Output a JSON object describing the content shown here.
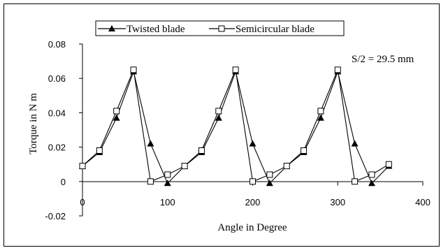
{
  "chart_data": {
    "type": "line",
    "xlabel": "Angle in Degree",
    "ylabel": "Torque in N m",
    "annotation": "S/2 = 29.5 mm",
    "xlim": [
      0,
      400
    ],
    "ylim": [
      -0.02,
      0.08
    ],
    "x_ticks": [
      0,
      100,
      200,
      300,
      400
    ],
    "x_tick_labels": [
      "0",
      "100",
      "200",
      "300",
      "400"
    ],
    "y_ticks": [
      -0.02,
      0,
      0.02,
      0.04,
      0.06,
      0.08
    ],
    "y_tick_labels": [
      "-0.02",
      "0",
      "0.02",
      "0.04",
      "0.06",
      "0.08"
    ],
    "grid": false,
    "legend_position": "top",
    "series": [
      {
        "name": "Twisted blade",
        "marker": "filled-triangle",
        "x": [
          0,
          20,
          40,
          60,
          80,
          100,
          120,
          140,
          160,
          180,
          200,
          220,
          240,
          260,
          280,
          300,
          320,
          340,
          360
        ],
        "y": [
          0.009,
          0.017,
          0.037,
          0.064,
          0.022,
          -0.001,
          0.009,
          0.017,
          0.037,
          0.064,
          0.022,
          -0.001,
          0.009,
          0.017,
          0.037,
          0.064,
          0.022,
          -0.001,
          0.009
        ]
      },
      {
        "name": "Semicircular blade",
        "marker": "open-square",
        "x": [
          0,
          20,
          40,
          60,
          80,
          100,
          120,
          140,
          160,
          180,
          200,
          220,
          240,
          260,
          280,
          300,
          320,
          340,
          360
        ],
        "y": [
          0.009,
          0.018,
          0.041,
          0.065,
          0.0,
          0.004,
          0.009,
          0.018,
          0.041,
          0.065,
          0.0,
          0.004,
          0.009,
          0.018,
          0.041,
          0.065,
          0.0,
          0.004,
          0.01
        ]
      }
    ]
  }
}
